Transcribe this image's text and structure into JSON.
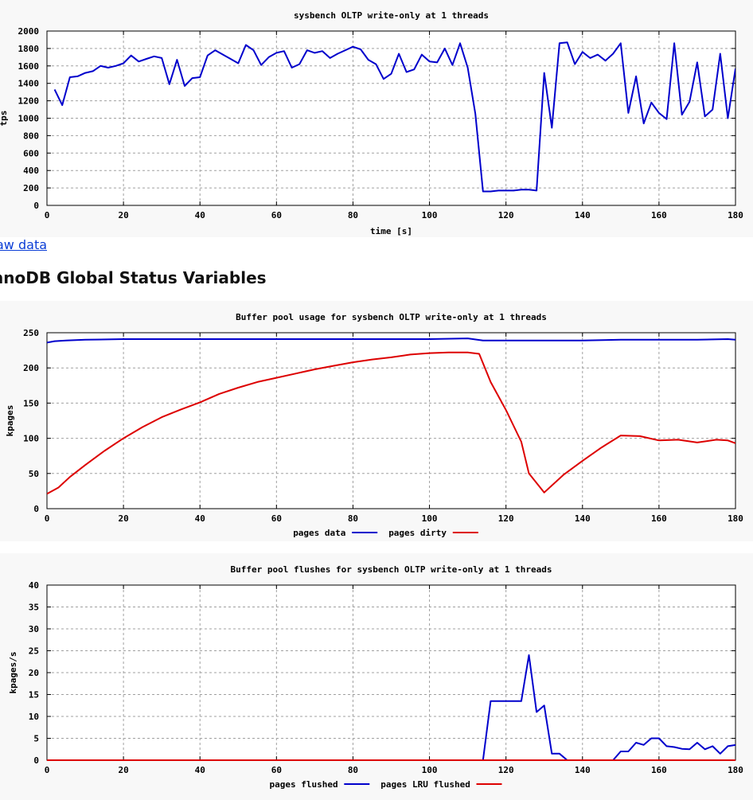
{
  "link": {
    "label": "aw data"
  },
  "section_heading": "nnoDB Global Status Variables",
  "chart_data": [
    {
      "type": "line",
      "title": "sysbench OLTP write-only at 1 threads",
      "xlabel": "time [s]",
      "ylabel": "tps",
      "xlim": [
        0,
        180
      ],
      "ylim": [
        0,
        2000
      ],
      "xticks": [
        0,
        20,
        40,
        60,
        80,
        100,
        120,
        140,
        160,
        180
      ],
      "yticks": [
        0,
        200,
        400,
        600,
        800,
        1000,
        1200,
        1400,
        1600,
        1800,
        2000
      ],
      "grid": true,
      "legend": "none",
      "series": [
        {
          "color": "#0000cc",
          "x": [
            2,
            4,
            6,
            8,
            10,
            12,
            14,
            16,
            18,
            20,
            22,
            24,
            26,
            28,
            30,
            32,
            34,
            36,
            38,
            40,
            42,
            44,
            46,
            48,
            50,
            52,
            54,
            56,
            58,
            60,
            62,
            64,
            66,
            68,
            70,
            72,
            74,
            76,
            78,
            80,
            82,
            84,
            86,
            88,
            90,
            92,
            94,
            96,
            98,
            100,
            102,
            104,
            106,
            108,
            110,
            112,
            114,
            116,
            118,
            120,
            122,
            124,
            126,
            128,
            130,
            132,
            134,
            136,
            138,
            140,
            142,
            144,
            146,
            148,
            150,
            152,
            154,
            156,
            158,
            160,
            162,
            164,
            166,
            168,
            170,
            172,
            174,
            176,
            178,
            180
          ],
          "y": [
            1330,
            1150,
            1470,
            1480,
            1520,
            1540,
            1600,
            1580,
            1600,
            1630,
            1720,
            1650,
            1680,
            1710,
            1690,
            1390,
            1670,
            1370,
            1460,
            1470,
            1720,
            1780,
            1730,
            1680,
            1630,
            1840,
            1780,
            1610,
            1700,
            1750,
            1770,
            1580,
            1620,
            1780,
            1750,
            1770,
            1690,
            1740,
            1780,
            1820,
            1790,
            1670,
            1620,
            1450,
            1510,
            1740,
            1530,
            1560,
            1730,
            1650,
            1640,
            1800,
            1610,
            1860,
            1580,
            1050,
            160,
            160,
            170,
            170,
            170,
            180,
            180,
            170,
            1520,
            890,
            1860,
            1870,
            1620,
            1760,
            1690,
            1730,
            1660,
            1740,
            1860,
            1060,
            1480,
            940,
            1180,
            1060,
            990,
            1860,
            1040,
            1190,
            1640,
            1020,
            1100,
            1740,
            1000,
            1570
          ]
        }
      ]
    },
    {
      "type": "line",
      "title": "Buffer pool usage for sysbench OLTP write-only at 1 threads",
      "xlabel": "",
      "ylabel": "kpages",
      "xlim": [
        0,
        180
      ],
      "ylim": [
        0,
        250
      ],
      "xticks": [
        0,
        20,
        40,
        60,
        80,
        100,
        120,
        140,
        160,
        180
      ],
      "yticks": [
        0,
        50,
        100,
        150,
        200,
        250
      ],
      "grid": true,
      "legend": "bottom",
      "series": [
        {
          "name": "pages data",
          "color": "#0000cc",
          "x": [
            0,
            2,
            5,
            10,
            20,
            40,
            60,
            80,
            100,
            110,
            114,
            120,
            130,
            140,
            150,
            160,
            170,
            178,
            180
          ],
          "y": [
            236,
            238,
            239,
            240,
            241,
            241,
            241,
            241,
            241,
            242,
            239,
            239,
            239,
            239,
            240,
            240,
            240,
            241,
            240
          ]
        },
        {
          "name": "pages dirty",
          "color": "#dd0000",
          "x": [
            0,
            3,
            6,
            10,
            15,
            20,
            25,
            30,
            35,
            40,
            45,
            50,
            55,
            60,
            65,
            70,
            75,
            80,
            85,
            90,
            95,
            100,
            105,
            110,
            113,
            116,
            120,
            124,
            126,
            130,
            135,
            140,
            145,
            150,
            155,
            160,
            165,
            170,
            175,
            178,
            180
          ],
          "y": [
            21,
            30,
            45,
            62,
            82,
            100,
            116,
            130,
            141,
            151,
            163,
            172,
            180,
            186,
            192,
            198,
            203,
            208,
            212,
            215,
            219,
            221,
            222,
            222,
            220,
            180,
            140,
            95,
            50,
            23,
            48,
            68,
            87,
            104,
            103,
            97,
            98,
            94,
            98,
            97,
            93
          ]
        }
      ]
    },
    {
      "type": "line",
      "title": "Buffer pool flushes for sysbench OLTP write-only at 1 threads",
      "xlabel": "",
      "ylabel": "kpages/s",
      "xlim": [
        0,
        180
      ],
      "ylim": [
        0,
        40
      ],
      "xticks": [
        0,
        20,
        40,
        60,
        80,
        100,
        120,
        140,
        160,
        180
      ],
      "yticks": [
        0,
        5,
        10,
        15,
        20,
        25,
        30,
        35,
        40
      ],
      "grid": true,
      "legend": "bottom",
      "series": [
        {
          "name": "pages flushed",
          "color": "#0000cc",
          "x": [
            0,
            114,
            116,
            120,
            124,
            126,
            128,
            130,
            132,
            134,
            136,
            140,
            146,
            148,
            150,
            152,
            154,
            156,
            158,
            160,
            162,
            164,
            166,
            168,
            170,
            172,
            174,
            176,
            178,
            180
          ],
          "y": [
            0,
            0,
            13.5,
            13.5,
            13.5,
            24,
            11,
            12.5,
            1.5,
            1.5,
            0,
            0,
            0,
            0,
            2,
            2,
            4,
            3.5,
            5,
            5,
            3.2,
            3,
            2.6,
            2.5,
            4,
            2.5,
            3.2,
            1.5,
            3.2,
            3.5
          ]
        },
        {
          "name": "pages LRU flushed",
          "color": "#dd0000",
          "x": [
            0,
            180
          ],
          "y": [
            0,
            0
          ]
        }
      ]
    }
  ]
}
